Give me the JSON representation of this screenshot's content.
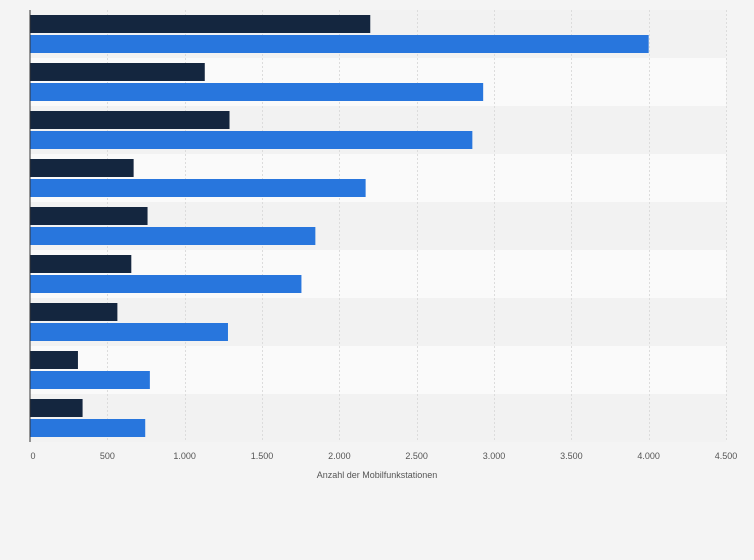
{
  "chart_data": {
    "type": "bar",
    "orientation": "horizontal",
    "categories": [
      "",
      "",
      "",
      "",
      "",
      "",
      "",
      "",
      ""
    ],
    "series": [
      {
        "values": [
          2200,
          1130,
          1290,
          670,
          760,
          655,
          565,
          310,
          340
        ],
        "color": "#14263f"
      },
      {
        "values": [
          4000,
          2930,
          2860,
          2170,
          1845,
          1755,
          1280,
          775,
          745
        ],
        "color": "#2876dd"
      }
    ],
    "title": "",
    "xlabel": "Anzahl der Mobilfunkstationen",
    "ylabel": "",
    "xlim": [
      0,
      4500
    ],
    "xticks": [
      0,
      500,
      1000,
      1500,
      2000,
      2500,
      3000,
      3500,
      4000,
      4500
    ],
    "xtick_labels": [
      "0",
      "500",
      "1.000",
      "1.500",
      "2.000",
      "2.500",
      "3.000",
      "3.500",
      "4.000",
      "4.500"
    ],
    "grid": true,
    "legend": "none"
  },
  "colors": {
    "background": "#f4f4f4",
    "row_band_light": "#fafafa",
    "row_band_dark": "#f2f2f2",
    "gridline": "#dcdcdc",
    "axis": "#333333",
    "tick_text": "#555555"
  }
}
